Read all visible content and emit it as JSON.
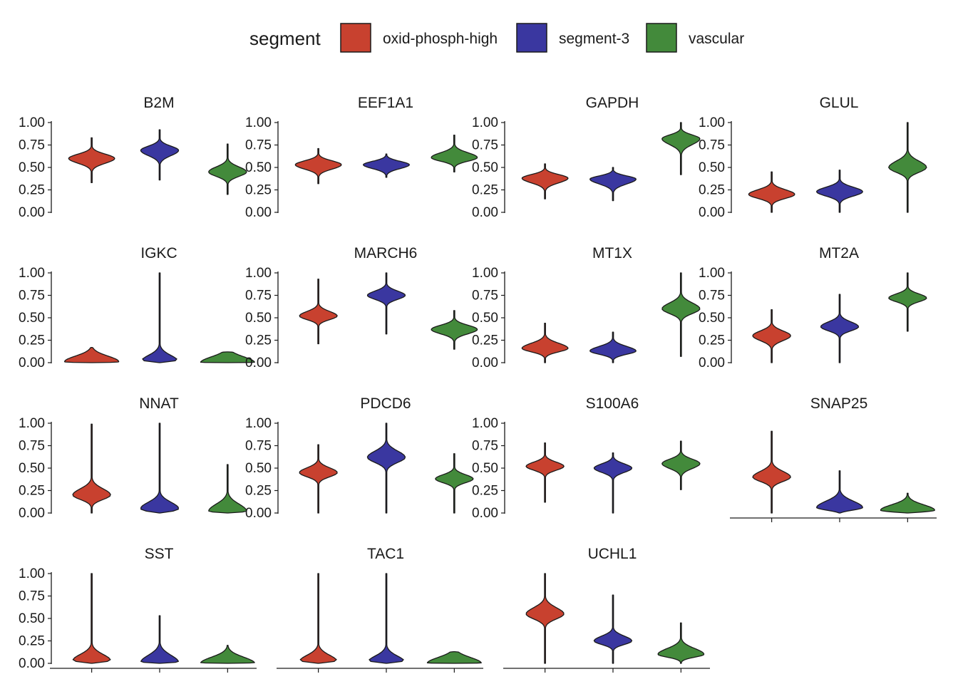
{
  "chart_data": {
    "type": "violin",
    "legend": {
      "title": "segment",
      "position": "top",
      "entries": [
        {
          "name": "oxid-phosph-high",
          "color": "#c8412f"
        },
        {
          "name": "segment-3",
          "color": "#3a37a0"
        },
        {
          "name": "vascular",
          "color": "#438a3b"
        }
      ]
    },
    "ylim": [
      0,
      1
    ],
    "yticks": [
      "0.00",
      "0.25",
      "0.50",
      "0.75",
      "1.00"
    ],
    "grid": false,
    "panels": [
      {
        "gene": "B2M",
        "violins": [
          {
            "segment": "oxid-phosph-high",
            "min": 0.33,
            "max": 0.83,
            "mode": 0.6
          },
          {
            "segment": "segment-3",
            "min": 0.36,
            "max": 0.92,
            "mode": 0.69
          },
          {
            "segment": "vascular",
            "min": 0.2,
            "max": 0.76,
            "mode": 0.45
          }
        ]
      },
      {
        "gene": "EEF1A1",
        "violins": [
          {
            "segment": "oxid-phosph-high",
            "min": 0.32,
            "max": 0.71,
            "mode": 0.53
          },
          {
            "segment": "segment-3",
            "min": 0.39,
            "max": 0.65,
            "mode": 0.53
          },
          {
            "segment": "vascular",
            "min": 0.45,
            "max": 0.86,
            "mode": 0.61
          }
        ]
      },
      {
        "gene": "GAPDH",
        "violins": [
          {
            "segment": "oxid-phosph-high",
            "min": 0.15,
            "max": 0.54,
            "mode": 0.38
          },
          {
            "segment": "segment-3",
            "min": 0.13,
            "max": 0.5,
            "mode": 0.37
          },
          {
            "segment": "vascular",
            "min": 0.42,
            "max": 1.0,
            "mode": 0.82
          }
        ]
      },
      {
        "gene": "GLUL",
        "violins": [
          {
            "segment": "oxid-phosph-high",
            "min": 0.0,
            "max": 0.45,
            "mode": 0.2
          },
          {
            "segment": "segment-3",
            "min": 0.0,
            "max": 0.47,
            "mode": 0.23
          },
          {
            "segment": "vascular",
            "min": 0.0,
            "max": 1.0,
            "mode": 0.5
          }
        ]
      },
      {
        "gene": "IGKC",
        "violins": [
          {
            "segment": "oxid-phosph-high",
            "min": 0.0,
            "max": 0.17,
            "mode": 0.01
          },
          {
            "segment": "segment-3",
            "min": 0.0,
            "max": 1.0,
            "mode": 0.01
          },
          {
            "segment": "vascular",
            "min": 0.0,
            "max": 0.12,
            "mode": 0.0
          }
        ]
      },
      {
        "gene": "MARCH6",
        "violins": [
          {
            "segment": "oxid-phosph-high",
            "min": 0.21,
            "max": 0.93,
            "mode": 0.52
          },
          {
            "segment": "segment-3",
            "min": 0.32,
            "max": 1.0,
            "mode": 0.75
          },
          {
            "segment": "vascular",
            "min": 0.15,
            "max": 0.58,
            "mode": 0.37
          }
        ]
      },
      {
        "gene": "MT1X",
        "violins": [
          {
            "segment": "oxid-phosph-high",
            "min": 0.0,
            "max": 0.44,
            "mode": 0.16
          },
          {
            "segment": "segment-3",
            "min": 0.0,
            "max": 0.34,
            "mode": 0.13
          },
          {
            "segment": "vascular",
            "min": 0.07,
            "max": 1.0,
            "mode": 0.6
          }
        ]
      },
      {
        "gene": "MT2A",
        "violins": [
          {
            "segment": "oxid-phosph-high",
            "min": 0.0,
            "max": 0.59,
            "mode": 0.3
          },
          {
            "segment": "segment-3",
            "min": 0.0,
            "max": 0.76,
            "mode": 0.4
          },
          {
            "segment": "vascular",
            "min": 0.35,
            "max": 1.0,
            "mode": 0.72
          }
        ]
      },
      {
        "gene": "NNAT",
        "violins": [
          {
            "segment": "oxid-phosph-high",
            "min": 0.0,
            "max": 0.99,
            "mode": 0.2
          },
          {
            "segment": "segment-3",
            "min": 0.0,
            "max": 1.0,
            "mode": 0.05
          },
          {
            "segment": "vascular",
            "min": 0.0,
            "max": 0.54,
            "mode": 0.02
          }
        ]
      },
      {
        "gene": "PDCD6",
        "violins": [
          {
            "segment": "oxid-phosph-high",
            "min": 0.0,
            "max": 0.76,
            "mode": 0.45
          },
          {
            "segment": "segment-3",
            "min": 0.0,
            "max": 1.0,
            "mode": 0.62
          },
          {
            "segment": "vascular",
            "min": 0.0,
            "max": 0.66,
            "mode": 0.38
          }
        ]
      },
      {
        "gene": "S100A6",
        "violins": [
          {
            "segment": "oxid-phosph-high",
            "min": 0.12,
            "max": 0.78,
            "mode": 0.52
          },
          {
            "segment": "segment-3",
            "min": 0.0,
            "max": 0.67,
            "mode": 0.5
          },
          {
            "segment": "vascular",
            "min": 0.26,
            "max": 0.8,
            "mode": 0.55
          }
        ]
      },
      {
        "gene": "SNAP25",
        "violins": [
          {
            "segment": "oxid-phosph-high",
            "min": 0.0,
            "max": 0.91,
            "mode": 0.4
          },
          {
            "segment": "segment-3",
            "min": 0.0,
            "max": 0.47,
            "mode": 0.06
          },
          {
            "segment": "vascular",
            "min": 0.0,
            "max": 0.22,
            "mode": 0.03
          }
        ]
      },
      {
        "gene": "SST",
        "violins": [
          {
            "segment": "oxid-phosph-high",
            "min": 0.0,
            "max": 1.0,
            "mode": 0.03
          },
          {
            "segment": "segment-3",
            "min": 0.0,
            "max": 0.53,
            "mode": 0.01
          },
          {
            "segment": "vascular",
            "min": 0.0,
            "max": 0.2,
            "mode": 0.0
          }
        ]
      },
      {
        "gene": "TAC1",
        "violins": [
          {
            "segment": "oxid-phosph-high",
            "min": 0.0,
            "max": 1.0,
            "mode": 0.02
          },
          {
            "segment": "segment-3",
            "min": 0.0,
            "max": 1.0,
            "mode": 0.01
          },
          {
            "segment": "vascular",
            "min": 0.0,
            "max": 0.13,
            "mode": 0.0
          }
        ]
      },
      {
        "gene": "UCHL1",
        "violins": [
          {
            "segment": "oxid-phosph-high",
            "min": 0.0,
            "max": 1.0,
            "mode": 0.55
          },
          {
            "segment": "segment-3",
            "min": 0.0,
            "max": 0.76,
            "mode": 0.25
          },
          {
            "segment": "vascular",
            "min": 0.0,
            "max": 0.45,
            "mode": 0.1
          }
        ]
      }
    ]
  }
}
